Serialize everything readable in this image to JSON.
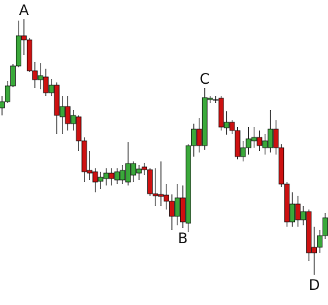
{
  "chart_data": {
    "type": "candlestick",
    "annotations": [
      {
        "text": "A"
      },
      {
        "text": "B"
      },
      {
        "text": "C"
      },
      {
        "text": "D"
      }
    ],
    "open": [
      287,
      296,
      319,
      348,
      392,
      386,
      341,
      328,
      332,
      309,
      320,
      274,
      289,
      264,
      274,
      239,
      196,
      194,
      180,
      184,
      192,
      182,
      182,
      179,
      189,
      192,
      201,
      197,
      162,
      161,
      160,
      151,
      129,
      156,
      119,
      232,
      256,
      232,
      299,
      299,
      301,
      258,
      266,
      254,
      216,
      229,
      239,
      244,
      229,
      229,
      256,
      229,
      176,
      121,
      147,
      124,
      136,
      84,
      84,
      101
    ],
    "high": [
      304,
      326,
      351,
      414,
      416,
      389,
      354,
      352,
      344,
      329,
      324,
      304,
      304,
      284,
      276,
      244,
      224,
      199,
      194,
      199,
      199,
      199,
      204,
      237,
      209,
      204,
      207,
      199,
      199,
      209,
      176,
      161,
      176,
      174,
      234,
      264,
      272,
      316,
      304,
      304,
      304,
      282,
      269,
      259,
      239,
      259,
      259,
      254,
      249,
      284,
      269,
      234,
      179,
      164,
      159,
      144,
      139,
      114,
      109,
      134
    ],
    "low": [
      276,
      294,
      317,
      346,
      364,
      339,
      316,
      314,
      304,
      304,
      249,
      249,
      254,
      254,
      224,
      179,
      182,
      164,
      169,
      174,
      174,
      176,
      176,
      174,
      179,
      182,
      189,
      159,
      144,
      144,
      139,
      109,
      116,
      112,
      106,
      216,
      222,
      226,
      294,
      294,
      254,
      248,
      249,
      212,
      209,
      219,
      229,
      224,
      219,
      222,
      219,
      172,
      114,
      114,
      114,
      116,
      64,
      44,
      76,
      96
    ],
    "close": [
      296,
      319,
      348,
      392,
      386,
      341,
      328,
      334,
      309,
      320,
      276,
      289,
      264,
      276,
      239,
      194,
      192,
      179,
      186,
      192,
      184,
      194,
      196,
      206,
      206,
      198,
      197,
      162,
      159,
      158,
      151,
      129,
      156,
      121,
      232,
      256,
      232,
      302,
      301,
      299,
      259,
      266,
      254,
      216,
      229,
      242,
      244,
      232,
      239,
      256,
      229,
      176,
      121,
      147,
      124,
      136,
      76,
      76,
      101,
      127
    ],
    "up_color": "#3aa83a",
    "down_color": "#cc1111",
    "doji_color": "#111111",
    "ylim": [
      0,
      444
    ]
  }
}
